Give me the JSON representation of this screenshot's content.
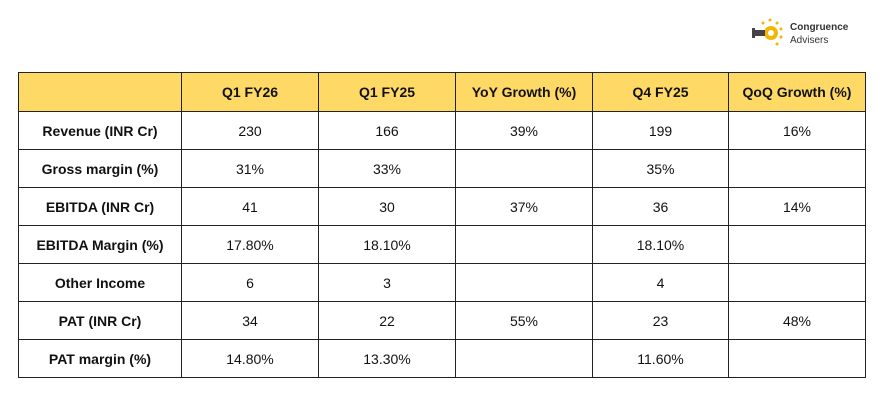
{
  "logo": {
    "line1": "Congruence",
    "line2": "Advisers"
  },
  "table": {
    "header": [
      null,
      "Q1 FY26",
      "Q1 FY25",
      "YoY Growth (%)",
      "Q4 FY25",
      "QoQ Growth (%)"
    ],
    "rows": [
      [
        "Revenue (INR Cr)",
        "230",
        "166",
        "39%",
        "199",
        "16%"
      ],
      [
        "Gross margin (%)",
        "31%",
        "33%",
        null,
        "35%",
        null
      ],
      [
        "EBITDA (INR Cr)",
        "41",
        "30",
        "37%",
        "36",
        "14%"
      ],
      [
        "EBITDA Margin (%)",
        "17.80%",
        "18.10%",
        null,
        "18.10%",
        null
      ],
      [
        "Other Income",
        "6",
        "3",
        null,
        "4",
        null
      ],
      [
        "PAT (INR Cr)",
        "34",
        "22",
        "55%",
        "23",
        "48%"
      ],
      [
        "PAT margin (%)",
        "14.80%",
        "13.30%",
        null,
        "11.60%",
        null
      ]
    ]
  }
}
